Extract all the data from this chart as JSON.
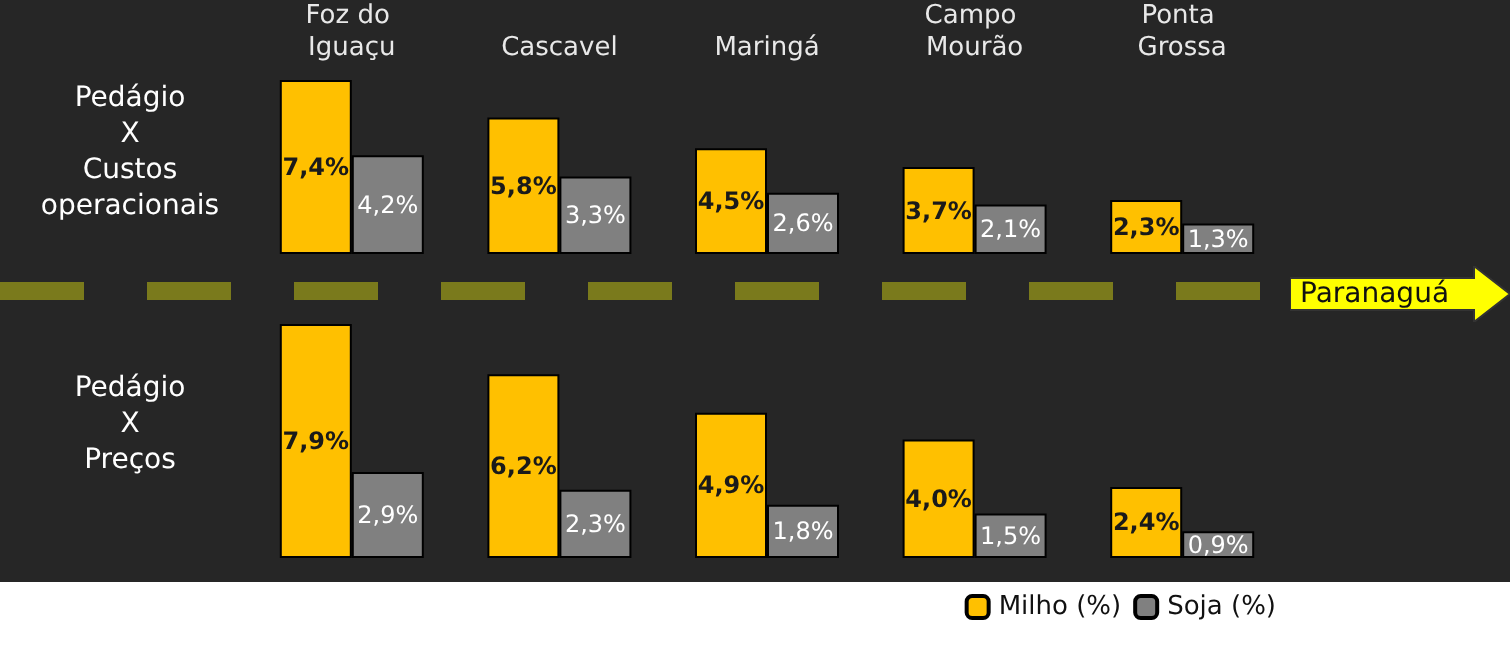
{
  "chart_data": [
    {
      "type": "bar",
      "ylabel": "Pedágio X Custos operacionais",
      "categories": [
        "Foz do Iguaçu",
        "Cascavel",
        "Maringá",
        "Campo Mourão",
        "Ponta Grossa"
      ],
      "tick_labels": "x",
      "annotations": [
        "Paranaguá"
      ],
      "series": [
        {
          "color": "#ffc000",
          "values": [
            7.4,
            5.8,
            4.5,
            3.7,
            2.3
          ],
          "value_labels": [
            "7,4%",
            "5,8%",
            "4,5%",
            "3,7%",
            "2,3%"
          ]
        },
        {
          "color": "#808080",
          "values": [
            4.2,
            3.3,
            2.6,
            2.1,
            1.3
          ],
          "value_labels": [
            "4,2%",
            "3,3%",
            "2,6%",
            "2,1%",
            "1,3%"
          ]
        }
      ]
    },
    {
      "type": "bar",
      "ylabel": "Pedágio X Preços",
      "categories": [
        "Foz do Iguaçu",
        "Cascavel",
        "Maringá",
        "Campo Mourão",
        "Ponta Grossa"
      ],
      "tick_labels": false,
      "legend": "bottom right",
      "series": [
        {
          "name": "Milho (%)",
          "color": "#ffc000",
          "values": [
            7.9,
            6.2,
            4.9,
            4.0,
            2.4
          ],
          "value_labels": [
            "7,9%",
            "6,2%",
            "4,9%",
            "4,0%",
            "2,4%"
          ]
        },
        {
          "name": "Soja (%)",
          "color": "#808080",
          "values": [
            2.9,
            2.3,
            1.8,
            1.5,
            0.9
          ],
          "value_labels": [
            "2,9%",
            "2,3%",
            "1,8%",
            "1,5%",
            "0,9%"
          ]
        }
      ]
    }
  ]
}
